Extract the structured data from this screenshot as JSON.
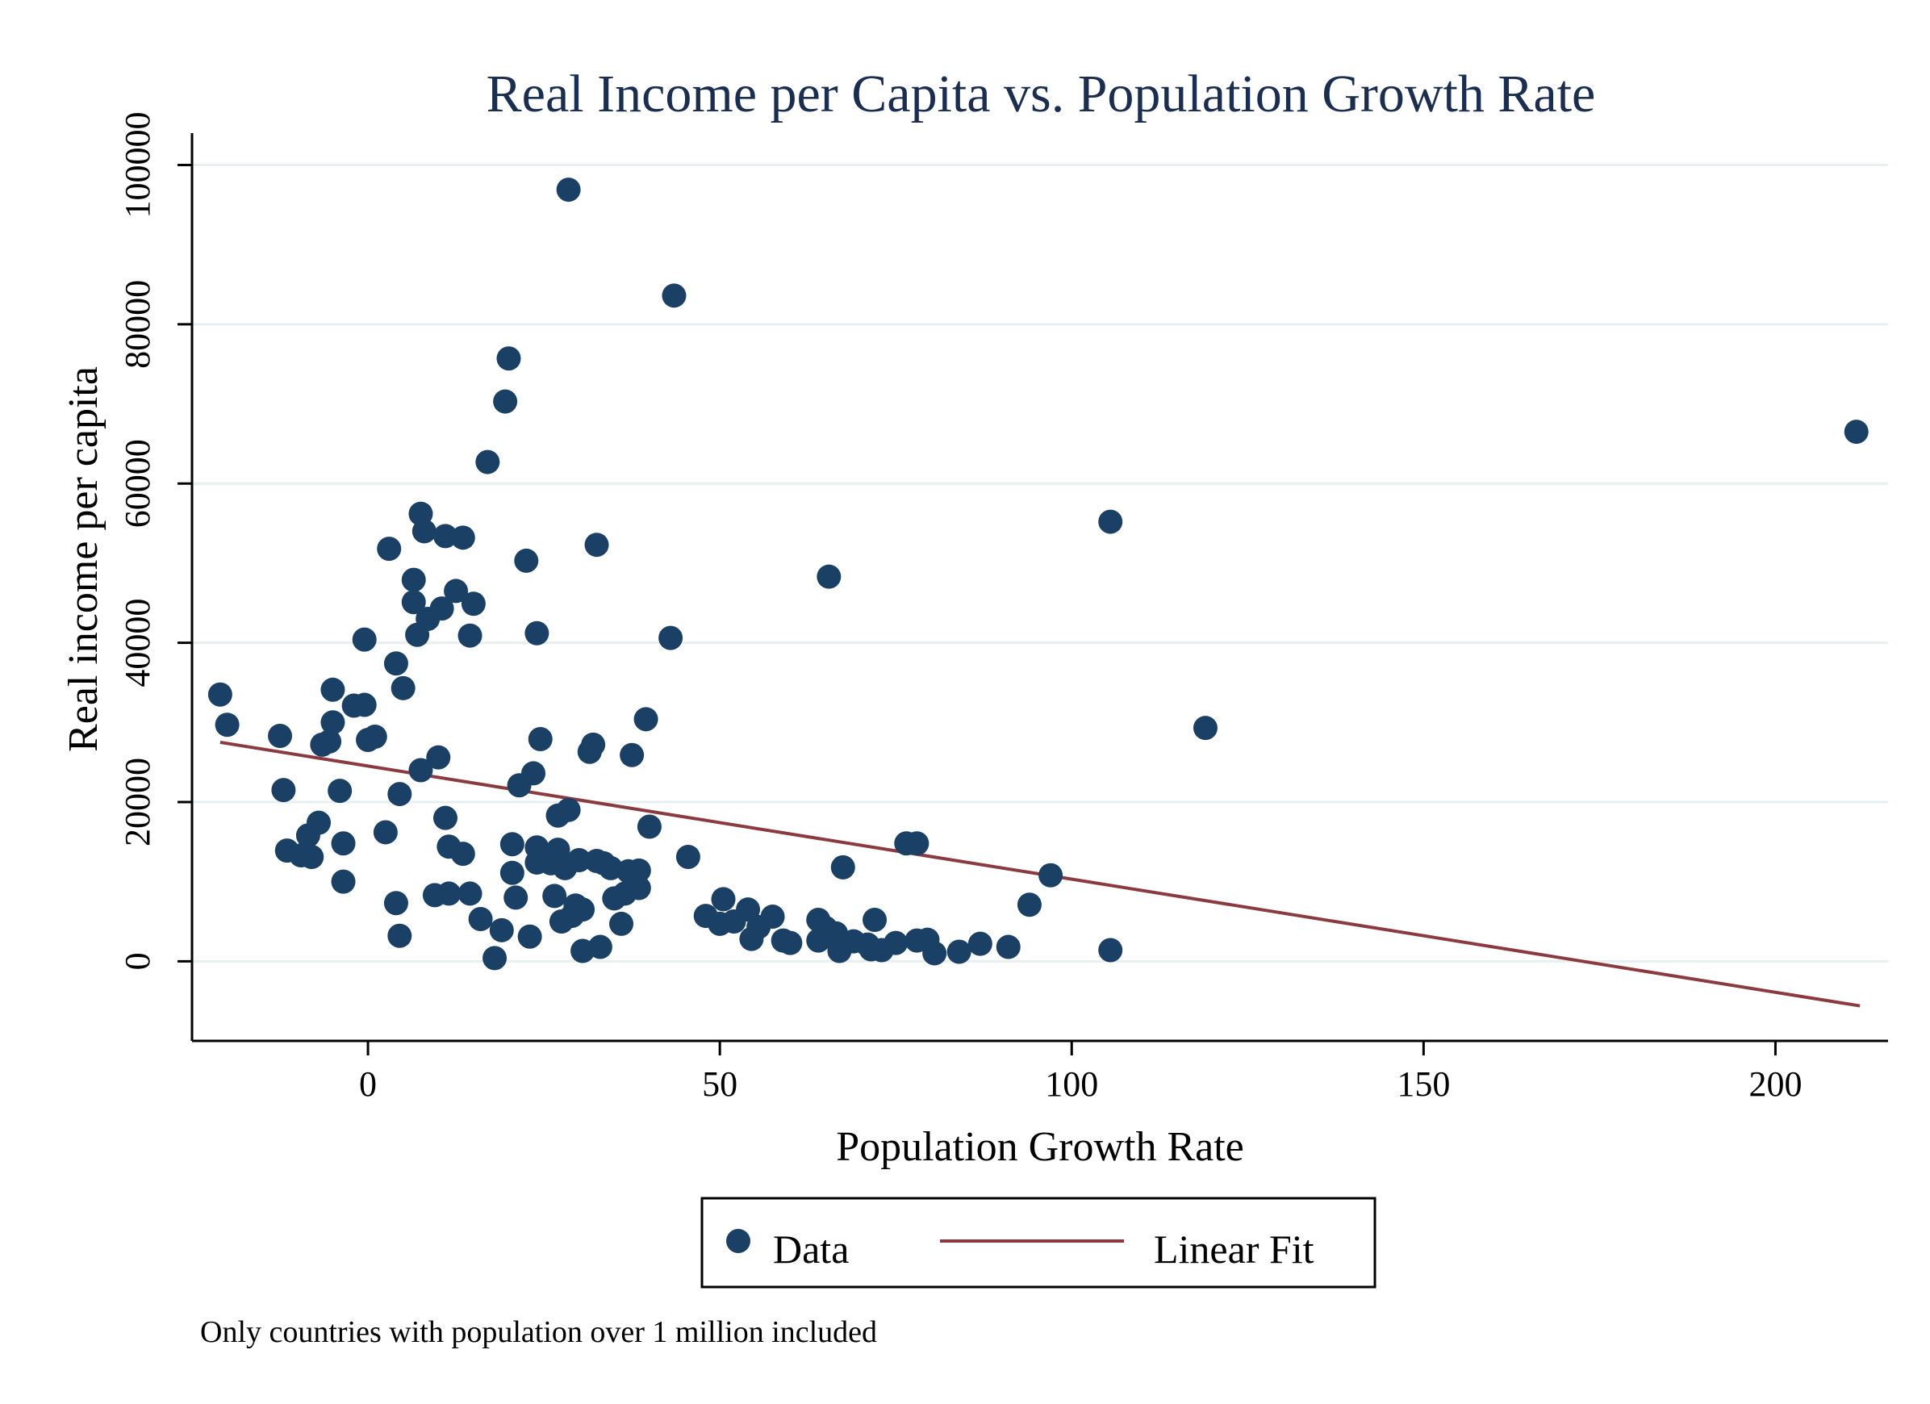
{
  "chart_data": {
    "type": "scatter",
    "title": "Real Income per Capita vs. Population Growth Rate",
    "xlabel": "Population Growth Rate",
    "ylabel": "Real income per capita",
    "xlim": [
      -25,
      216
    ],
    "ylim": [
      -10000,
      104000
    ],
    "xticks": [
      0,
      50,
      100,
      150,
      200
    ],
    "yticks": [
      0,
      20000,
      40000,
      60000,
      80000,
      100000
    ],
    "grid": "horizontal",
    "legend_position": "bottom",
    "colors": {
      "data": "#1a4066",
      "fit": "#8b3a3f",
      "grid": "#e8eff0"
    },
    "note": "Only countries with population over 1 million included",
    "series": [
      {
        "name": "Data",
        "kind": "scatter",
        "points": [
          [
            -21,
            33500
          ],
          [
            -20,
            29700
          ],
          [
            -12.5,
            28300
          ],
          [
            -12,
            21500
          ],
          [
            -11.5,
            13900
          ],
          [
            -9.5,
            13300
          ],
          [
            -8.5,
            15800
          ],
          [
            -8,
            13100
          ],
          [
            -7,
            17400
          ],
          [
            -6.5,
            27200
          ],
          [
            -5.5,
            27600
          ],
          [
            -5,
            30000
          ],
          [
            -5,
            34100
          ],
          [
            -4,
            21400
          ],
          [
            -3.5,
            10000
          ],
          [
            -3.5,
            14800
          ],
          [
            -2,
            32100
          ],
          [
            -0.5,
            32200
          ],
          [
            -0.5,
            40400
          ],
          [
            0,
            27800
          ],
          [
            1,
            28200
          ],
          [
            2.5,
            16200
          ],
          [
            3,
            51800
          ],
          [
            4,
            37400
          ],
          [
            4,
            7300
          ],
          [
            4.5,
            21000
          ],
          [
            4.5,
            3200
          ],
          [
            5,
            34300
          ],
          [
            6.5,
            47900
          ],
          [
            6.5,
            45100
          ],
          [
            7,
            41000
          ],
          [
            7.5,
            24000
          ],
          [
            7.5,
            56200
          ],
          [
            8,
            54000
          ],
          [
            8.5,
            43000
          ],
          [
            9.5,
            8300
          ],
          [
            10,
            25600
          ],
          [
            10.5,
            44300
          ],
          [
            11,
            53400
          ],
          [
            11,
            18000
          ],
          [
            11.5,
            14400
          ],
          [
            11.5,
            8500
          ],
          [
            12.5,
            46500
          ],
          [
            13.5,
            53200
          ],
          [
            13.5,
            13500
          ],
          [
            14.5,
            8500
          ],
          [
            14.5,
            40900
          ],
          [
            15,
            44900
          ],
          [
            16,
            5300
          ],
          [
            17,
            62700
          ],
          [
            18,
            400
          ],
          [
            19,
            3900
          ],
          [
            19.5,
            70300
          ],
          [
            20,
            75700
          ],
          [
            20.5,
            14700
          ],
          [
            20.5,
            11100
          ],
          [
            21,
            8000
          ],
          [
            21.5,
            22100
          ],
          [
            22.5,
            50300
          ],
          [
            23,
            3100
          ],
          [
            23.5,
            23600
          ],
          [
            24,
            41200
          ],
          [
            24,
            14300
          ],
          [
            24,
            12400
          ],
          [
            24.5,
            27900
          ],
          [
            26,
            12300
          ],
          [
            26.5,
            8200
          ],
          [
            27,
            18300
          ],
          [
            27,
            14000
          ],
          [
            27.5,
            5000
          ],
          [
            28,
            11700
          ],
          [
            28.5,
            96900
          ],
          [
            28.5,
            19000
          ],
          [
            29,
            5700
          ],
          [
            29.5,
            7000
          ],
          [
            30,
            12700
          ],
          [
            30.5,
            1300
          ],
          [
            30.5,
            6500
          ],
          [
            31.5,
            26300
          ],
          [
            32,
            27200
          ],
          [
            32.5,
            52300
          ],
          [
            32.5,
            12600
          ],
          [
            33,
            1800
          ],
          [
            33.5,
            12300
          ],
          [
            34.5,
            11700
          ],
          [
            35,
            7900
          ],
          [
            36,
            4700
          ],
          [
            36.5,
            8500
          ],
          [
            37,
            11300
          ],
          [
            37.5,
            25900
          ],
          [
            38.5,
            11400
          ],
          [
            38.5,
            9200
          ],
          [
            39.5,
            30400
          ],
          [
            40,
            16900
          ],
          [
            43,
            40600
          ],
          [
            43.5,
            83600
          ],
          [
            45.5,
            13100
          ],
          [
            48,
            5700
          ],
          [
            50,
            4700
          ],
          [
            50.5,
            7800
          ],
          [
            52,
            5000
          ],
          [
            54,
            6500
          ],
          [
            54.5,
            2800
          ],
          [
            55.5,
            4300
          ],
          [
            57.5,
            5600
          ],
          [
            59,
            2600
          ],
          [
            60,
            2300
          ],
          [
            64,
            5200
          ],
          [
            64,
            2600
          ],
          [
            65,
            4200
          ],
          [
            65.5,
            48300
          ],
          [
            66.5,
            3500
          ],
          [
            67,
            1300
          ],
          [
            67.5,
            11800
          ],
          [
            69,
            2500
          ],
          [
            71,
            2100
          ],
          [
            71.5,
            1500
          ],
          [
            72,
            5200
          ],
          [
            73,
            1400
          ],
          [
            75,
            2300
          ],
          [
            76.5,
            14800
          ],
          [
            78,
            2600
          ],
          [
            78,
            14800
          ],
          [
            79.5,
            2700
          ],
          [
            80.5,
            1000
          ],
          [
            84,
            1200
          ],
          [
            87,
            2200
          ],
          [
            91,
            1800
          ],
          [
            94,
            7100
          ],
          [
            97,
            10800
          ],
          [
            105.5,
            55200
          ],
          [
            105.5,
            1400
          ],
          [
            119,
            29300
          ],
          [
            211.5,
            66500
          ]
        ]
      },
      {
        "name": "Linear Fit",
        "kind": "line",
        "points": [
          [
            -21,
            27500
          ],
          [
            212,
            -5600
          ]
        ]
      }
    ]
  }
}
